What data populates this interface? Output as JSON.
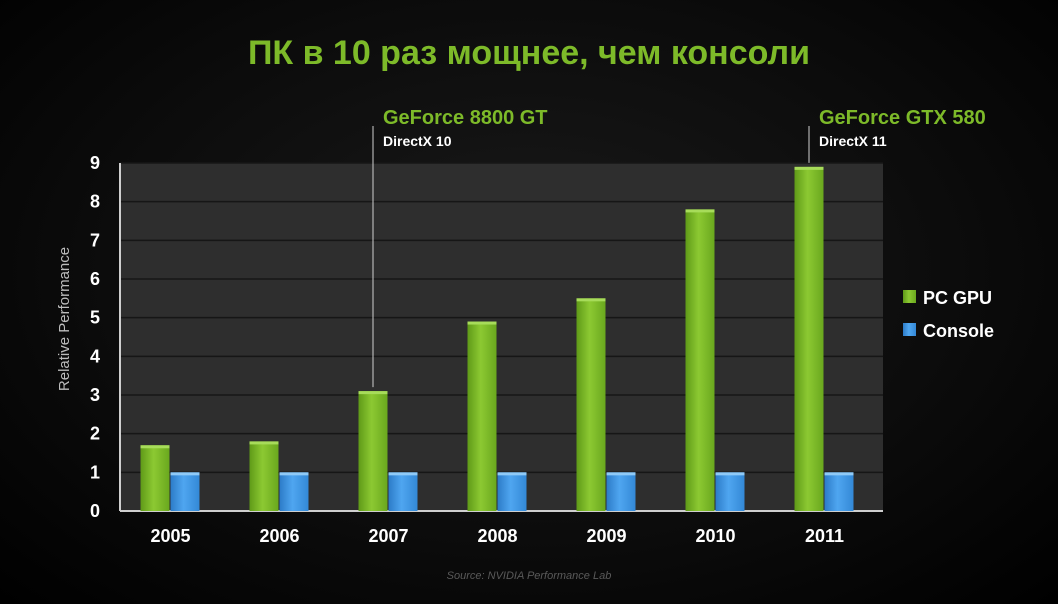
{
  "title": "ПК в 10 раз мощнее, чем консоли",
  "source": "Source:  NVIDIA Performance Lab",
  "colors": {
    "pc_gpu": "#7dba29",
    "console": "#3b93e0",
    "title": "#7dba29"
  },
  "annotations": [
    {
      "category": "2007",
      "series": "PC GPU",
      "name": "GeForce 8800 GT",
      "sub": "DirectX 10"
    },
    {
      "category": "2011",
      "series": "PC GPU",
      "name": "GeForce GTX 580",
      "sub": "DirectX 11"
    }
  ],
  "chart_data": {
    "type": "bar",
    "title": "ПК в 10 раз мощнее, чем консоли",
    "xlabel": "",
    "ylabel": "Relative Performance",
    "categories": [
      "2005",
      "2006",
      "2007",
      "2008",
      "2009",
      "2010",
      "2011"
    ],
    "series": [
      {
        "name": "PC GPU",
        "values": [
          1.7,
          1.8,
          3.1,
          4.9,
          5.5,
          7.8,
          8.9
        ]
      },
      {
        "name": "Console",
        "values": [
          1,
          1,
          1,
          1,
          1,
          1,
          1
        ]
      }
    ],
    "ylim": [
      0,
      9
    ],
    "yticks": [
      "0",
      "1",
      "2",
      "3",
      "4",
      "5",
      "6",
      "7",
      "8",
      "9"
    ],
    "grid": true,
    "legend": "right"
  }
}
